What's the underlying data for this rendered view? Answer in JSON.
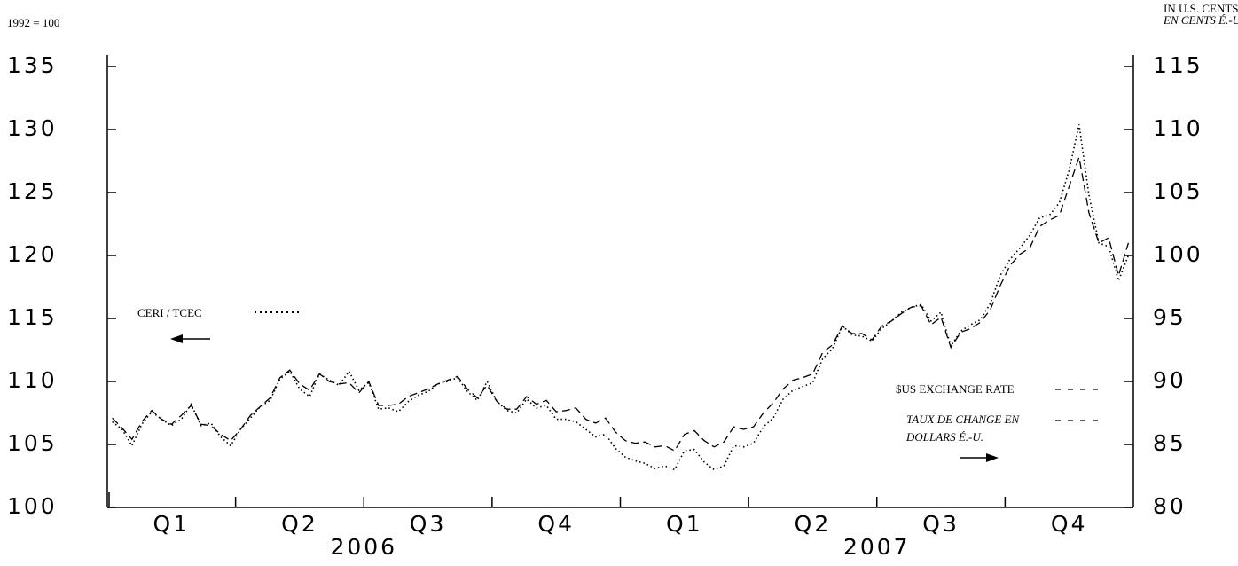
{
  "chart_data": {
    "type": "line",
    "y_label": "1992 = 100",
    "y2_label": [
      "IN U.S. CENTS",
      "EN CENTS É.-U."
    ],
    "xlim": [
      -0.5,
      103.5
    ],
    "xticks": [
      {
        "value": 6,
        "label": "Q1"
      },
      {
        "value": 19,
        "label": "Q2"
      },
      {
        "value": 32,
        "label": "Q3"
      },
      {
        "value": 45,
        "label": "Q4"
      },
      {
        "value": 58,
        "label": "Q1"
      },
      {
        "value": 71,
        "label": "Q2"
      },
      {
        "value": 84,
        "label": "Q3"
      },
      {
        "value": 97,
        "label": "Q4"
      }
    ],
    "xgroups": [
      {
        "value": 25.5,
        "label": "2006"
      },
      {
        "value": 77.5,
        "label": "2007"
      }
    ],
    "ylim": [
      100,
      135
    ],
    "yticks": [
      100,
      105,
      110,
      115,
      120,
      125,
      130,
      135
    ],
    "y2lim": [
      80,
      115
    ],
    "y2ticks": [
      80,
      85,
      90,
      95,
      100,
      105,
      110,
      115
    ],
    "series": [
      {
        "name": "CERI / TCEC",
        "color": "#000000",
        "style": "dotted",
        "axis": "y",
        "values": [
          106.8,
          106.2,
          104.9,
          106.6,
          107.6,
          107.0,
          106.5,
          107.0,
          108.2,
          106.5,
          106.7,
          105.6,
          104.9,
          106.2,
          107.1,
          108.0,
          108.5,
          110.2,
          110.8,
          109.4,
          108.8,
          110.6,
          110.1,
          109.7,
          110.8,
          109.3,
          109.9,
          107.8,
          107.9,
          107.6,
          108.4,
          108.9,
          109.2,
          109.8,
          110.0,
          110.3,
          109.2,
          108.5,
          110.0,
          108.4,
          107.7,
          107.5,
          108.6,
          107.9,
          108.1,
          107.0,
          107.0,
          106.8,
          106.2,
          105.6,
          105.8,
          104.7,
          104.0,
          103.7,
          103.5,
          103.1,
          103.3,
          103.0,
          104.5,
          104.6,
          103.6,
          103.0,
          103.3,
          104.9,
          104.8,
          105.1,
          106.4,
          107.1,
          108.6,
          109.3,
          109.6,
          109.9,
          111.8,
          112.6,
          114.4,
          113.7,
          113.6,
          113.2,
          114.2,
          114.8,
          115.5,
          115.9,
          116.1,
          114.8,
          115.5,
          112.8,
          114.0,
          114.5,
          114.9,
          116.2,
          118.4,
          119.7,
          120.6,
          121.6,
          123.0,
          123.2,
          124.2,
          126.8,
          130.4,
          124.8,
          121.0,
          120.7,
          118.0,
          120.0
        ]
      },
      {
        "name": "$US EXCHANGE RATE",
        "name_fr": [
          "TAUX DE CHANGE EN",
          "DOLLARS É.-U."
        ],
        "color": "#000000",
        "style": "dashed",
        "axis": "y2",
        "values": [
          87.1,
          86.3,
          85.4,
          86.8,
          87.7,
          87.0,
          86.6,
          87.3,
          88.1,
          86.6,
          86.5,
          85.8,
          85.3,
          86.2,
          87.3,
          88.0,
          88.7,
          90.3,
          90.9,
          89.8,
          89.3,
          90.6,
          90.0,
          89.8,
          89.9,
          89.1,
          90.0,
          88.1,
          88.1,
          88.2,
          88.8,
          89.1,
          89.4,
          89.8,
          90.1,
          90.4,
          89.4,
          88.7,
          89.7,
          88.4,
          87.8,
          87.8,
          88.8,
          88.2,
          88.5,
          87.6,
          87.7,
          87.9,
          87.0,
          86.7,
          87.1,
          86.0,
          85.3,
          85.1,
          85.2,
          84.8,
          84.9,
          84.5,
          85.8,
          86.1,
          85.3,
          84.8,
          85.2,
          86.4,
          86.2,
          86.4,
          87.5,
          88.3,
          89.4,
          90.1,
          90.3,
          90.6,
          92.3,
          92.9,
          94.4,
          93.8,
          93.8,
          93.3,
          94.4,
          94.8,
          95.4,
          95.9,
          96.0,
          94.5,
          95.1,
          92.7,
          93.9,
          94.2,
          94.7,
          95.7,
          97.6,
          99.2,
          100.1,
          100.6,
          102.3,
          102.8,
          103.2,
          105.5,
          107.8,
          103.4,
          101.0,
          101.4,
          98.4,
          101.0
        ]
      }
    ]
  }
}
